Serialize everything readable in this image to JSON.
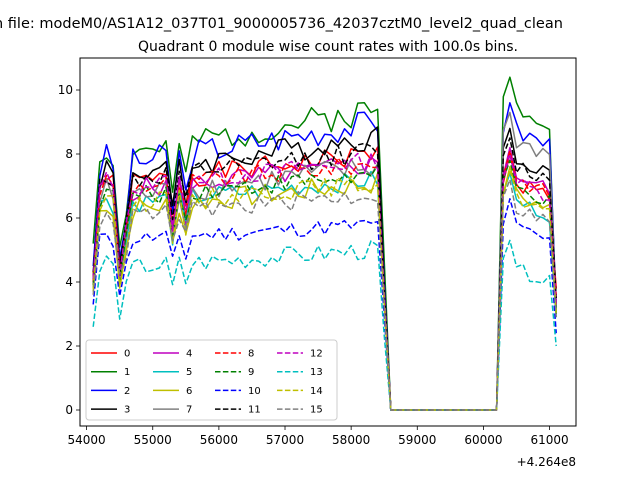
{
  "suptitle": "n file: modeM0/AS1A12_037T01_9000005736_42037cztM0_level2_quad_clean",
  "chart_data": {
    "type": "line",
    "title": "Quadrant 0 module wise count rates with 100.0s bins.",
    "xlabel": "",
    "ylabel": "",
    "x_offset_label": "+4.264e8",
    "xlim": [
      53900,
      61400
    ],
    "ylim": [
      -0.5,
      11.0
    ],
    "x_ticks": [
      54000,
      55000,
      56000,
      57000,
      58000,
      59000,
      60000,
      61000
    ],
    "x_tick_labels": [
      "54000",
      "55000",
      "56000",
      "57000",
      "58000",
      "59000",
      "60000",
      "61000"
    ],
    "y_ticks": [
      0,
      2,
      4,
      6,
      8,
      10
    ],
    "y_tick_labels": [
      "0",
      "2",
      "4",
      "6",
      "8",
      "10"
    ],
    "grid": false,
    "legend": {
      "placement": "lower-left",
      "columns": 4
    },
    "seg1": {
      "x_start": 54100,
      "x_end": 58400,
      "step": 100
    },
    "gap": {
      "x_start": 58600,
      "x_end": 60200,
      "value": 0
    },
    "seg2": {
      "x_start": 60200,
      "x_end": 61100,
      "step": 100
    },
    "series": [
      {
        "name": "0",
        "color": "#ff0000",
        "dash": "solid",
        "base": 7.0,
        "slope": 0.2,
        "depth": 2.6,
        "noise": 0.35,
        "seed": 1,
        "y_start": 4.2,
        "y_end": 3.8,
        "peak2": 8.0
      },
      {
        "name": "1",
        "color": "#008000",
        "dash": "solid",
        "base": 7.9,
        "slope": 0.3,
        "depth": 3.0,
        "noise": 0.45,
        "seed": 2,
        "y_start": 5.2,
        "y_end": 3.0,
        "peak2": 10.4
      },
      {
        "name": "2",
        "color": "#0000ff",
        "dash": "solid",
        "base": 7.6,
        "slope": 0.28,
        "depth": 3.0,
        "noise": 0.45,
        "seed": 3,
        "y_start": 4.5,
        "y_end": 3.2,
        "peak2": 9.6
      },
      {
        "name": "3",
        "color": "#000000",
        "dash": "solid",
        "base": 7.3,
        "slope": 0.25,
        "depth": 2.8,
        "noise": 0.4,
        "seed": 4,
        "y_start": 4.3,
        "y_end": 3.3,
        "peak2": 8.8
      },
      {
        "name": "4",
        "color": "#bf00bf",
        "dash": "solid",
        "base": 6.8,
        "slope": 0.18,
        "depth": 2.4,
        "noise": 0.35,
        "seed": 5,
        "y_start": 4.0,
        "y_end": 3.4,
        "peak2": 8.2
      },
      {
        "name": "5",
        "color": "#00bfbf",
        "dash": "solid",
        "base": 6.4,
        "slope": 0.16,
        "depth": 2.2,
        "noise": 0.3,
        "seed": 6,
        "y_start": 3.8,
        "y_end": 2.9,
        "peak2": 7.4
      },
      {
        "name": "6",
        "color": "#bfbf00",
        "dash": "solid",
        "base": 6.2,
        "slope": 0.18,
        "depth": 2.3,
        "noise": 0.35,
        "seed": 7,
        "y_start": 3.7,
        "y_end": 3.1,
        "peak2": 7.6
      },
      {
        "name": "7",
        "color": "#808080",
        "dash": "solid",
        "base": 6.6,
        "slope": 0.2,
        "depth": 2.4,
        "noise": 0.4,
        "seed": 8,
        "y_start": 3.9,
        "y_end": 3.2,
        "peak2": 9.3
      },
      {
        "name": "8",
        "color": "#ff0000",
        "dash": "dashed",
        "base": 6.9,
        "slope": 0.16,
        "depth": 2.5,
        "noise": 0.3,
        "seed": 9,
        "y_start": 4.0,
        "y_end": 3.6,
        "peak2": 8.1
      },
      {
        "name": "9",
        "color": "#008000",
        "dash": "dashed",
        "base": 6.6,
        "slope": 0.15,
        "depth": 2.4,
        "noise": 0.3,
        "seed": 10,
        "y_start": 3.9,
        "y_end": 3.0,
        "peak2": 7.8
      },
      {
        "name": "10",
        "color": "#0000ff",
        "dash": "dashed",
        "base": 5.3,
        "slope": 0.1,
        "depth": 1.6,
        "noise": 0.25,
        "seed": 11,
        "y_start": 3.3,
        "y_end": 2.4,
        "peak2": 6.6
      },
      {
        "name": "11",
        "color": "#000000",
        "dash": "dashed",
        "base": 7.1,
        "slope": 0.2,
        "depth": 2.6,
        "noise": 0.35,
        "seed": 12,
        "y_start": 4.1,
        "y_end": 3.5,
        "peak2": 8.5
      },
      {
        "name": "12",
        "color": "#bf00bf",
        "dash": "dashed",
        "base": 6.9,
        "slope": 0.18,
        "depth": 2.5,
        "noise": 0.3,
        "seed": 13,
        "y_start": 4.1,
        "y_end": 3.3,
        "peak2": 8.0
      },
      {
        "name": "13",
        "color": "#00bfbf",
        "dash": "dashed",
        "base": 4.4,
        "slope": 0.12,
        "depth": 1.3,
        "noise": 0.3,
        "seed": 14,
        "y_start": 2.6,
        "y_end": 2.0,
        "peak2": 5.3
      },
      {
        "name": "14",
        "color": "#bfbf00",
        "dash": "dashed",
        "base": 6.4,
        "slope": 0.14,
        "depth": 2.3,
        "noise": 0.3,
        "seed": 15,
        "y_start": 3.8,
        "y_end": 3.0,
        "peak2": 7.5
      },
      {
        "name": "15",
        "color": "#808080",
        "dash": "dashed",
        "base": 6.0,
        "slope": 0.15,
        "depth": 2.0,
        "noise": 0.3,
        "seed": 16,
        "y_start": 3.6,
        "y_end": 2.9,
        "peak2": 7.2
      }
    ]
  }
}
